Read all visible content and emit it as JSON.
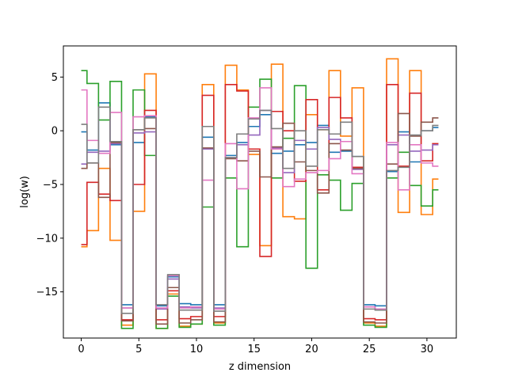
{
  "chart_data": {
    "type": "line",
    "drawstyle": "steps-mid",
    "xlabel": "z dimension",
    "ylabel": "log(w)",
    "xlim": [
      -1.55,
      32.55
    ],
    "ylim": [
      -19.3,
      7.9
    ],
    "xticks": [
      0,
      5,
      10,
      15,
      20,
      25,
      30
    ],
    "yticks": [
      5,
      0,
      -5,
      -10,
      -15
    ],
    "ytick_labels": [
      "5",
      "0",
      "−5",
      "−10",
      "−15"
    ],
    "grid": false,
    "x": [
      0,
      1,
      2,
      3,
      4,
      5,
      6,
      7,
      8,
      9,
      10,
      11,
      12,
      13,
      14,
      15,
      16,
      17,
      18,
      19,
      20,
      21,
      22,
      23,
      24,
      25,
      26,
      27,
      28,
      29,
      30,
      31
    ],
    "series": [
      {
        "color": "#1f77b4",
        "values": [
          -0.1,
          -1.8,
          2.6,
          -1.3,
          -16.2,
          -1.1,
          1.3,
          -16.3,
          -13.6,
          -16.1,
          -16.2,
          -0.6,
          -16.2,
          -2.3,
          -1.1,
          0.4,
          1.5,
          -2.1,
          -1.9,
          -1.3,
          -1.1,
          0.5,
          -2.0,
          -1.9,
          -2.4,
          -16.2,
          -16.3,
          -3.8,
          -0.1,
          -2.9,
          0.0,
          0.3
        ]
      },
      {
        "color": "#ff7f0e",
        "values": [
          -10.8,
          -9.3,
          -3.5,
          -10.2,
          -18.1,
          -7.5,
          5.3,
          -18.4,
          -15.2,
          -18.2,
          -18.0,
          4.3,
          -17.9,
          6.1,
          3.8,
          -2.2,
          -10.7,
          6.2,
          -8.0,
          -8.2,
          1.5,
          0.1,
          5.6,
          -0.5,
          4.0,
          -17.9,
          -18.2,
          6.7,
          -7.6,
          5.6,
          -7.8,
          -4.5
        ]
      },
      {
        "color": "#2ca02c",
        "values": [
          5.6,
          4.4,
          1.0,
          4.6,
          -18.4,
          3.8,
          -2.3,
          -18.4,
          -15.4,
          -18.3,
          -18.0,
          -7.1,
          -18.1,
          -4.4,
          -10.8,
          2.2,
          4.8,
          -4.4,
          -0.7,
          4.2,
          -12.8,
          -4.1,
          -4.6,
          -7.4,
          -4.9,
          -18.1,
          -18.3,
          -4.4,
          -2.0,
          -5.1,
          -7.0,
          -5.5
        ]
      },
      {
        "color": "#d62728",
        "values": [
          -10.6,
          -4.8,
          -5.9,
          -6.5,
          -17.6,
          -5.0,
          1.9,
          -17.6,
          -14.9,
          -17.5,
          -17.3,
          3.3,
          -17.3,
          4.3,
          3.7,
          -1.7,
          -11.7,
          1.8,
          0.0,
          -4.7,
          2.9,
          -5.5,
          3.1,
          1.2,
          -3.4,
          -17.5,
          -17.6,
          4.3,
          -3.3,
          3.5,
          -2.8,
          -1.2
        ]
      },
      {
        "color": "#9467bd",
        "values": [
          -3.1,
          -2.0,
          -1.9,
          -1.2,
          -16.5,
          -0.2,
          -0.1,
          -16.6,
          -13.8,
          -16.4,
          -16.5,
          -1.7,
          -16.5,
          -2.5,
          -1.3,
          -0.4,
          1.9,
          -1.6,
          -3.9,
          -0.9,
          -1.7,
          0.3,
          -0.8,
          -1.0,
          -3.6,
          -16.4,
          -16.6,
          -1.3,
          -0.4,
          -1.9,
          -1.8,
          -1.3
        ]
      },
      {
        "color": "#8c564b",
        "values": [
          -3.5,
          -3.0,
          -6.2,
          -1.1,
          -17.7,
          0.1,
          0.2,
          -18.0,
          -14.6,
          -17.9,
          -17.6,
          -1.6,
          -17.8,
          -2.6,
          -2.8,
          -1.9,
          -4.3,
          -1.5,
          0.7,
          -2.9,
          -3.7,
          -5.8,
          -1.2,
          -1.8,
          -3.5,
          -17.8,
          -17.9,
          -3.1,
          1.6,
          -0.5,
          0.8,
          1.2
        ]
      },
      {
        "color": "#e377c2",
        "values": [
          3.8,
          -0.9,
          -2.1,
          1.7,
          -16.5,
          1.3,
          1.4,
          -16.5,
          -13.5,
          -16.5,
          -16.4,
          -4.6,
          -16.6,
          -1.2,
          -5.4,
          1.2,
          4.0,
          -1.7,
          -5.2,
          -4.5,
          -3.9,
          -3.7,
          -2.6,
          -1.0,
          -4.0,
          -16.4,
          -16.6,
          -1.1,
          -5.5,
          -1.3,
          -3.0,
          -3.3
        ]
      },
      {
        "color": "#7f7f7f",
        "values": [
          0.6,
          -3.0,
          2.2,
          -1.0,
          -17.0,
          0.1,
          1.2,
          -16.2,
          -13.4,
          -16.7,
          -16.7,
          0.4,
          -16.8,
          -2.5,
          -0.3,
          1.1,
          1.9,
          0.2,
          -3.5,
          0.0,
          -3.3,
          0.1,
          -0.3,
          0.8,
          -2.4,
          -16.6,
          -16.7,
          -3.7,
          -3.4,
          -0.4,
          0.0,
          0.5
        ]
      }
    ]
  }
}
